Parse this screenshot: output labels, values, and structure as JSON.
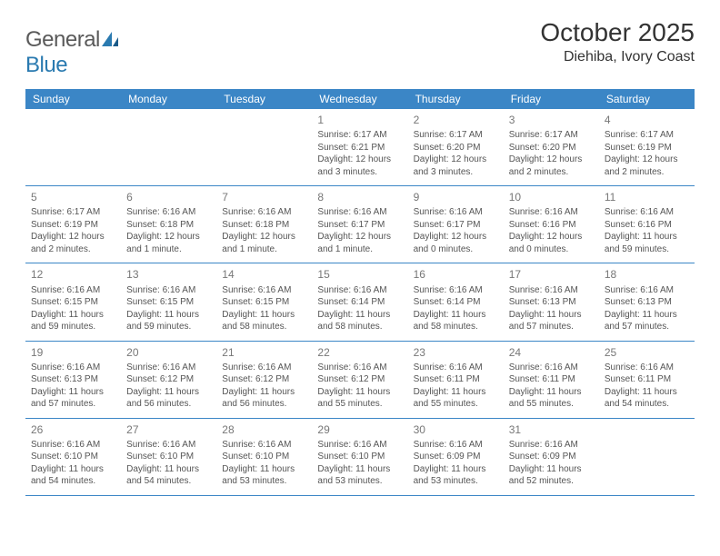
{
  "brand": {
    "part1": "General",
    "part2": "Blue"
  },
  "title": "October 2025",
  "location": "Diehiba, Ivory Coast",
  "colors": {
    "header_bg": "#3b86c6",
    "header_text": "#ffffff",
    "rule": "#3b86c6",
    "logo_gray": "#5a5a5a",
    "logo_blue": "#2a7ab0",
    "body_text": "#555555",
    "daynum": "#777777"
  },
  "dow": [
    "Sunday",
    "Monday",
    "Tuesday",
    "Wednesday",
    "Thursday",
    "Friday",
    "Saturday"
  ],
  "weeks": [
    [
      null,
      null,
      null,
      {
        "n": "1",
        "sr": "Sunrise: 6:17 AM",
        "ss": "Sunset: 6:21 PM",
        "d1": "Daylight: 12 hours",
        "d2": "and 3 minutes."
      },
      {
        "n": "2",
        "sr": "Sunrise: 6:17 AM",
        "ss": "Sunset: 6:20 PM",
        "d1": "Daylight: 12 hours",
        "d2": "and 3 minutes."
      },
      {
        "n": "3",
        "sr": "Sunrise: 6:17 AM",
        "ss": "Sunset: 6:20 PM",
        "d1": "Daylight: 12 hours",
        "d2": "and 2 minutes."
      },
      {
        "n": "4",
        "sr": "Sunrise: 6:17 AM",
        "ss": "Sunset: 6:19 PM",
        "d1": "Daylight: 12 hours",
        "d2": "and 2 minutes."
      }
    ],
    [
      {
        "n": "5",
        "sr": "Sunrise: 6:17 AM",
        "ss": "Sunset: 6:19 PM",
        "d1": "Daylight: 12 hours",
        "d2": "and 2 minutes."
      },
      {
        "n": "6",
        "sr": "Sunrise: 6:16 AM",
        "ss": "Sunset: 6:18 PM",
        "d1": "Daylight: 12 hours",
        "d2": "and 1 minute."
      },
      {
        "n": "7",
        "sr": "Sunrise: 6:16 AM",
        "ss": "Sunset: 6:18 PM",
        "d1": "Daylight: 12 hours",
        "d2": "and 1 minute."
      },
      {
        "n": "8",
        "sr": "Sunrise: 6:16 AM",
        "ss": "Sunset: 6:17 PM",
        "d1": "Daylight: 12 hours",
        "d2": "and 1 minute."
      },
      {
        "n": "9",
        "sr": "Sunrise: 6:16 AM",
        "ss": "Sunset: 6:17 PM",
        "d1": "Daylight: 12 hours",
        "d2": "and 0 minutes."
      },
      {
        "n": "10",
        "sr": "Sunrise: 6:16 AM",
        "ss": "Sunset: 6:16 PM",
        "d1": "Daylight: 12 hours",
        "d2": "and 0 minutes."
      },
      {
        "n": "11",
        "sr": "Sunrise: 6:16 AM",
        "ss": "Sunset: 6:16 PM",
        "d1": "Daylight: 11 hours",
        "d2": "and 59 minutes."
      }
    ],
    [
      {
        "n": "12",
        "sr": "Sunrise: 6:16 AM",
        "ss": "Sunset: 6:15 PM",
        "d1": "Daylight: 11 hours",
        "d2": "and 59 minutes."
      },
      {
        "n": "13",
        "sr": "Sunrise: 6:16 AM",
        "ss": "Sunset: 6:15 PM",
        "d1": "Daylight: 11 hours",
        "d2": "and 59 minutes."
      },
      {
        "n": "14",
        "sr": "Sunrise: 6:16 AM",
        "ss": "Sunset: 6:15 PM",
        "d1": "Daylight: 11 hours",
        "d2": "and 58 minutes."
      },
      {
        "n": "15",
        "sr": "Sunrise: 6:16 AM",
        "ss": "Sunset: 6:14 PM",
        "d1": "Daylight: 11 hours",
        "d2": "and 58 minutes."
      },
      {
        "n": "16",
        "sr": "Sunrise: 6:16 AM",
        "ss": "Sunset: 6:14 PM",
        "d1": "Daylight: 11 hours",
        "d2": "and 58 minutes."
      },
      {
        "n": "17",
        "sr": "Sunrise: 6:16 AM",
        "ss": "Sunset: 6:13 PM",
        "d1": "Daylight: 11 hours",
        "d2": "and 57 minutes."
      },
      {
        "n": "18",
        "sr": "Sunrise: 6:16 AM",
        "ss": "Sunset: 6:13 PM",
        "d1": "Daylight: 11 hours",
        "d2": "and 57 minutes."
      }
    ],
    [
      {
        "n": "19",
        "sr": "Sunrise: 6:16 AM",
        "ss": "Sunset: 6:13 PM",
        "d1": "Daylight: 11 hours",
        "d2": "and 57 minutes."
      },
      {
        "n": "20",
        "sr": "Sunrise: 6:16 AM",
        "ss": "Sunset: 6:12 PM",
        "d1": "Daylight: 11 hours",
        "d2": "and 56 minutes."
      },
      {
        "n": "21",
        "sr": "Sunrise: 6:16 AM",
        "ss": "Sunset: 6:12 PM",
        "d1": "Daylight: 11 hours",
        "d2": "and 56 minutes."
      },
      {
        "n": "22",
        "sr": "Sunrise: 6:16 AM",
        "ss": "Sunset: 6:12 PM",
        "d1": "Daylight: 11 hours",
        "d2": "and 55 minutes."
      },
      {
        "n": "23",
        "sr": "Sunrise: 6:16 AM",
        "ss": "Sunset: 6:11 PM",
        "d1": "Daylight: 11 hours",
        "d2": "and 55 minutes."
      },
      {
        "n": "24",
        "sr": "Sunrise: 6:16 AM",
        "ss": "Sunset: 6:11 PM",
        "d1": "Daylight: 11 hours",
        "d2": "and 55 minutes."
      },
      {
        "n": "25",
        "sr": "Sunrise: 6:16 AM",
        "ss": "Sunset: 6:11 PM",
        "d1": "Daylight: 11 hours",
        "d2": "and 54 minutes."
      }
    ],
    [
      {
        "n": "26",
        "sr": "Sunrise: 6:16 AM",
        "ss": "Sunset: 6:10 PM",
        "d1": "Daylight: 11 hours",
        "d2": "and 54 minutes."
      },
      {
        "n": "27",
        "sr": "Sunrise: 6:16 AM",
        "ss": "Sunset: 6:10 PM",
        "d1": "Daylight: 11 hours",
        "d2": "and 54 minutes."
      },
      {
        "n": "28",
        "sr": "Sunrise: 6:16 AM",
        "ss": "Sunset: 6:10 PM",
        "d1": "Daylight: 11 hours",
        "d2": "and 53 minutes."
      },
      {
        "n": "29",
        "sr": "Sunrise: 6:16 AM",
        "ss": "Sunset: 6:10 PM",
        "d1": "Daylight: 11 hours",
        "d2": "and 53 minutes."
      },
      {
        "n": "30",
        "sr": "Sunrise: 6:16 AM",
        "ss": "Sunset: 6:09 PM",
        "d1": "Daylight: 11 hours",
        "d2": "and 53 minutes."
      },
      {
        "n": "31",
        "sr": "Sunrise: 6:16 AM",
        "ss": "Sunset: 6:09 PM",
        "d1": "Daylight: 11 hours",
        "d2": "and 52 minutes."
      },
      null
    ]
  ]
}
